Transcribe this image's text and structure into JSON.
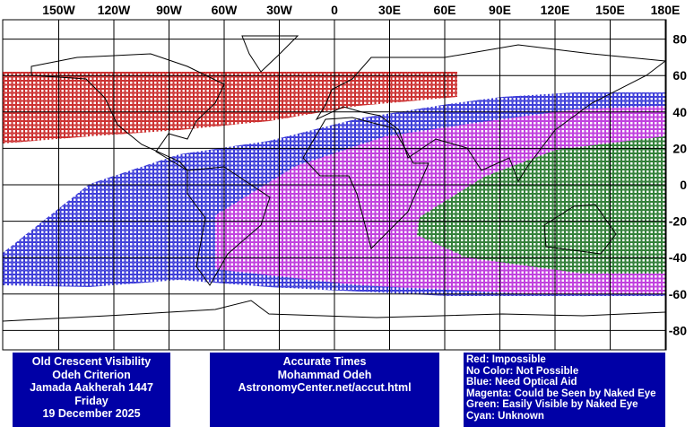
{
  "map": {
    "lon_labels": [
      "150W",
      "120W",
      "90W",
      "60W",
      "30W",
      "0",
      "30E",
      "60E",
      "90E",
      "120E",
      "150E",
      "180E"
    ],
    "lat_labels": [
      80,
      60,
      40,
      20,
      0,
      -20,
      -40,
      -60,
      -80
    ]
  },
  "info_box": {
    "lines": [
      "Old Crescent Visibility",
      "Odeh Criterion",
      "Jamada Aakherah 1447",
      "Friday",
      "19 December 2025"
    ]
  },
  "credit_box": {
    "lines": [
      "Accurate Times",
      "Mohammad Odeh",
      "AstronomyCenter.net/accut.html"
    ]
  },
  "legend_box": {
    "lines": [
      "Red: Impossible",
      "No Color: Not Possible",
      "Blue: Need Optical Aid",
      "Magenta: Could be Seen by Naked Eye",
      "Green: Easily Visible by Naked Eye",
      "Cyan: Unknown"
    ]
  }
}
